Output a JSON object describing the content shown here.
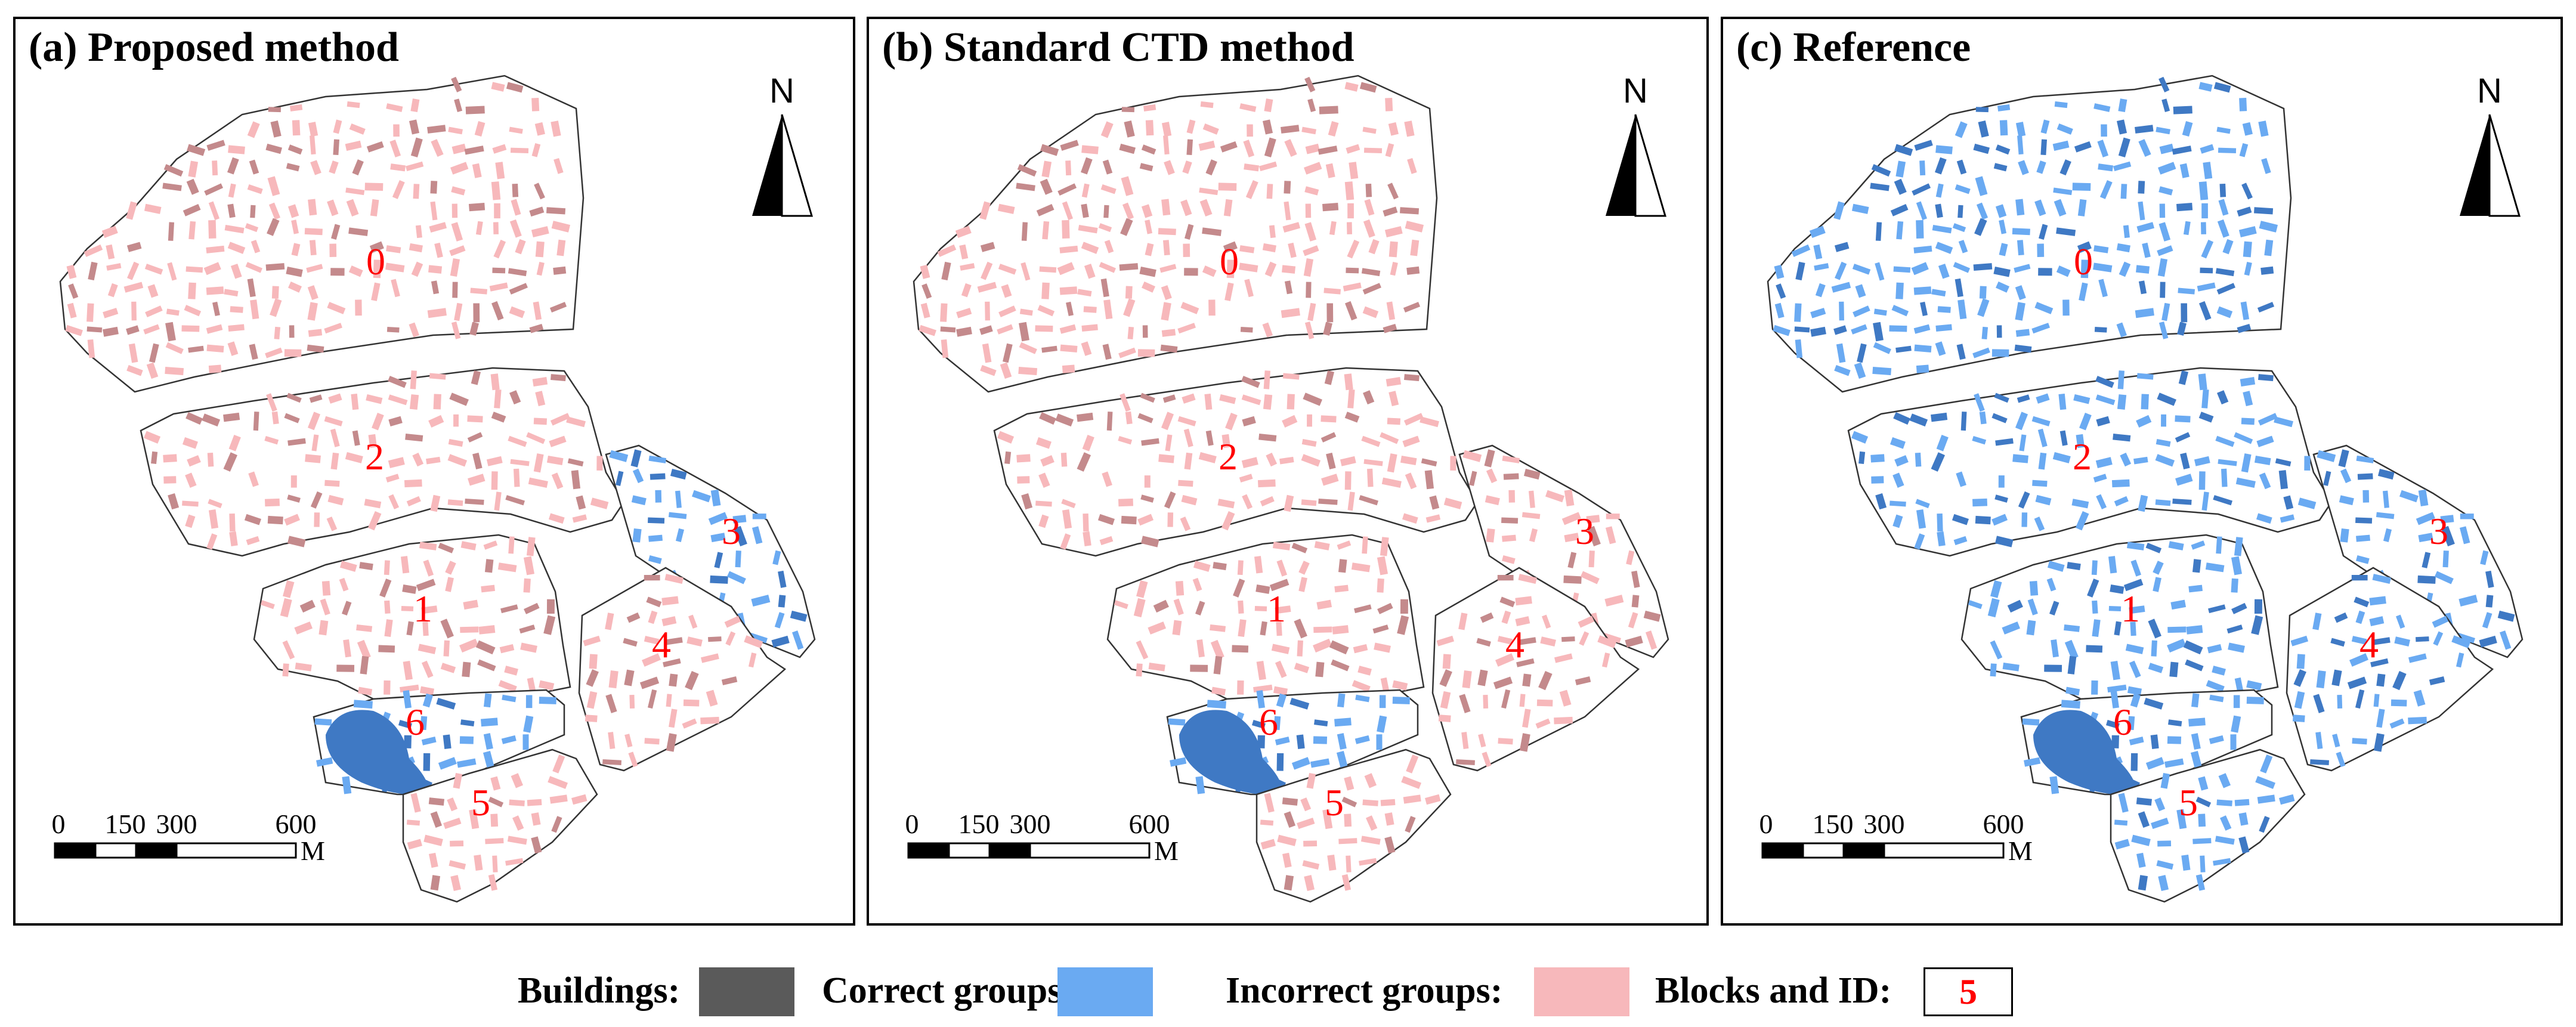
{
  "figure": {
    "panels": [
      {
        "title": "(a) Proposed method",
        "north_label": "N",
        "scale_ticks": [
          "0",
          "150",
          "300",
          "600"
        ],
        "scale_unit": "M",
        "block_ids": [
          "0",
          "1",
          "2",
          "3",
          "4",
          "5",
          "6"
        ],
        "incorrect_blocks": [
          "0",
          "1",
          "2",
          "4",
          "5"
        ]
      },
      {
        "title": "(b) Standard CTD method",
        "north_label": "N",
        "scale_ticks": [
          "0",
          "150",
          "300",
          "600"
        ],
        "scale_unit": "M",
        "block_ids": [
          "0",
          "1",
          "2",
          "3",
          "4",
          "5",
          "6"
        ],
        "incorrect_blocks": [
          "0",
          "1",
          "2",
          "3",
          "4",
          "5"
        ]
      },
      {
        "title": "(c) Reference",
        "north_label": "N",
        "scale_ticks": [
          "0",
          "150",
          "300",
          "600"
        ],
        "scale_unit": "M",
        "block_ids": [
          "0",
          "1",
          "2",
          "3",
          "4",
          "5",
          "6"
        ],
        "incorrect_blocks": []
      }
    ],
    "legend": {
      "buildings_label": "Buildings:",
      "correct_label": "Correct groups:",
      "incorrect_label": "Incorrect groups:",
      "blocks_label": "Blocks and ID:",
      "blocks_example_id": "5"
    },
    "colors": {
      "building": "#5a5a5a",
      "correct": "#6aaaf2",
      "correct_dark": "#3f79c4",
      "incorrect": "#f7b8bb",
      "incorrect_dark": "#c48a8c",
      "block_id": "#ff0000"
    }
  }
}
